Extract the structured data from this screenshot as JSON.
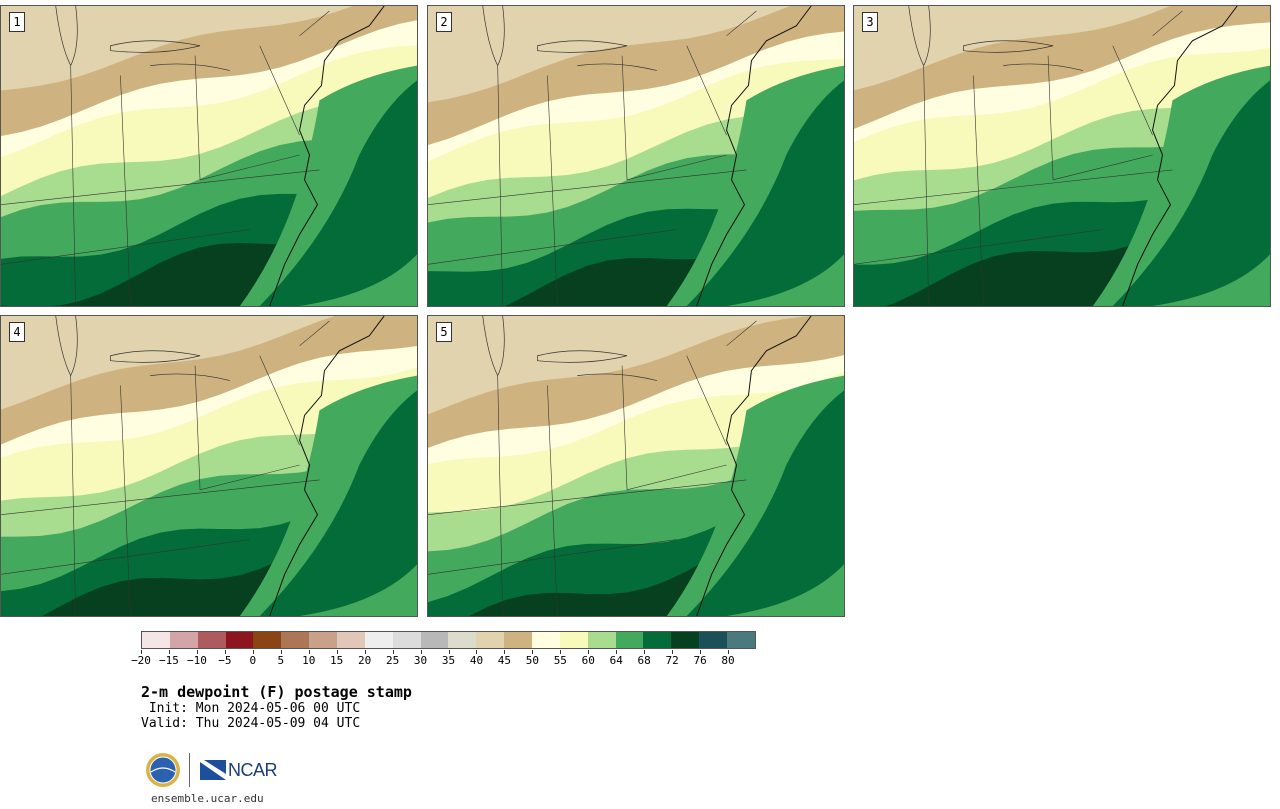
{
  "panels": [
    {
      "label": "1",
      "shift": 0
    },
    {
      "label": "2",
      "shift": 8
    },
    {
      "label": "3",
      "shift": -6
    },
    {
      "label": "4",
      "shift": 4
    },
    {
      "label": "5",
      "shift": 12
    }
  ],
  "legend": {
    "colors": [
      "#f4e6e6",
      "#d3a4a8",
      "#ad5b5f",
      "#8c1520",
      "#8b4513",
      "#ad7757",
      "#c9a08a",
      "#e2c6b8",
      "#efefef",
      "#dcdcdc",
      "#b8b8b8",
      "#dcdccb",
      "#e1d3ad",
      "#ceb380",
      "#fffee0",
      "#f7faba",
      "#a8dc8e",
      "#43a95c",
      "#046c38",
      "#06401f",
      "#1b4f59",
      "#4b797e"
    ],
    "ticks": [
      "−20",
      "−15",
      "−10",
      "−5",
      "0",
      "5",
      "10",
      "15",
      "20",
      "25",
      "30",
      "35",
      "40",
      "45",
      "50",
      "55",
      "60",
      "64",
      "68",
      "72",
      "76",
      "80"
    ]
  },
  "title": "2-m dewpoint (F) postage stamp",
  "init_line": " Init: Mon 2024-05-06 00 UTC",
  "valid_line": "Valid: Thu 2024-05-09 04 UTC",
  "logos": {
    "nsf": "nsf-logo",
    "ncar_text": "NCAR"
  },
  "site": "ensemble.ucar.edu"
}
